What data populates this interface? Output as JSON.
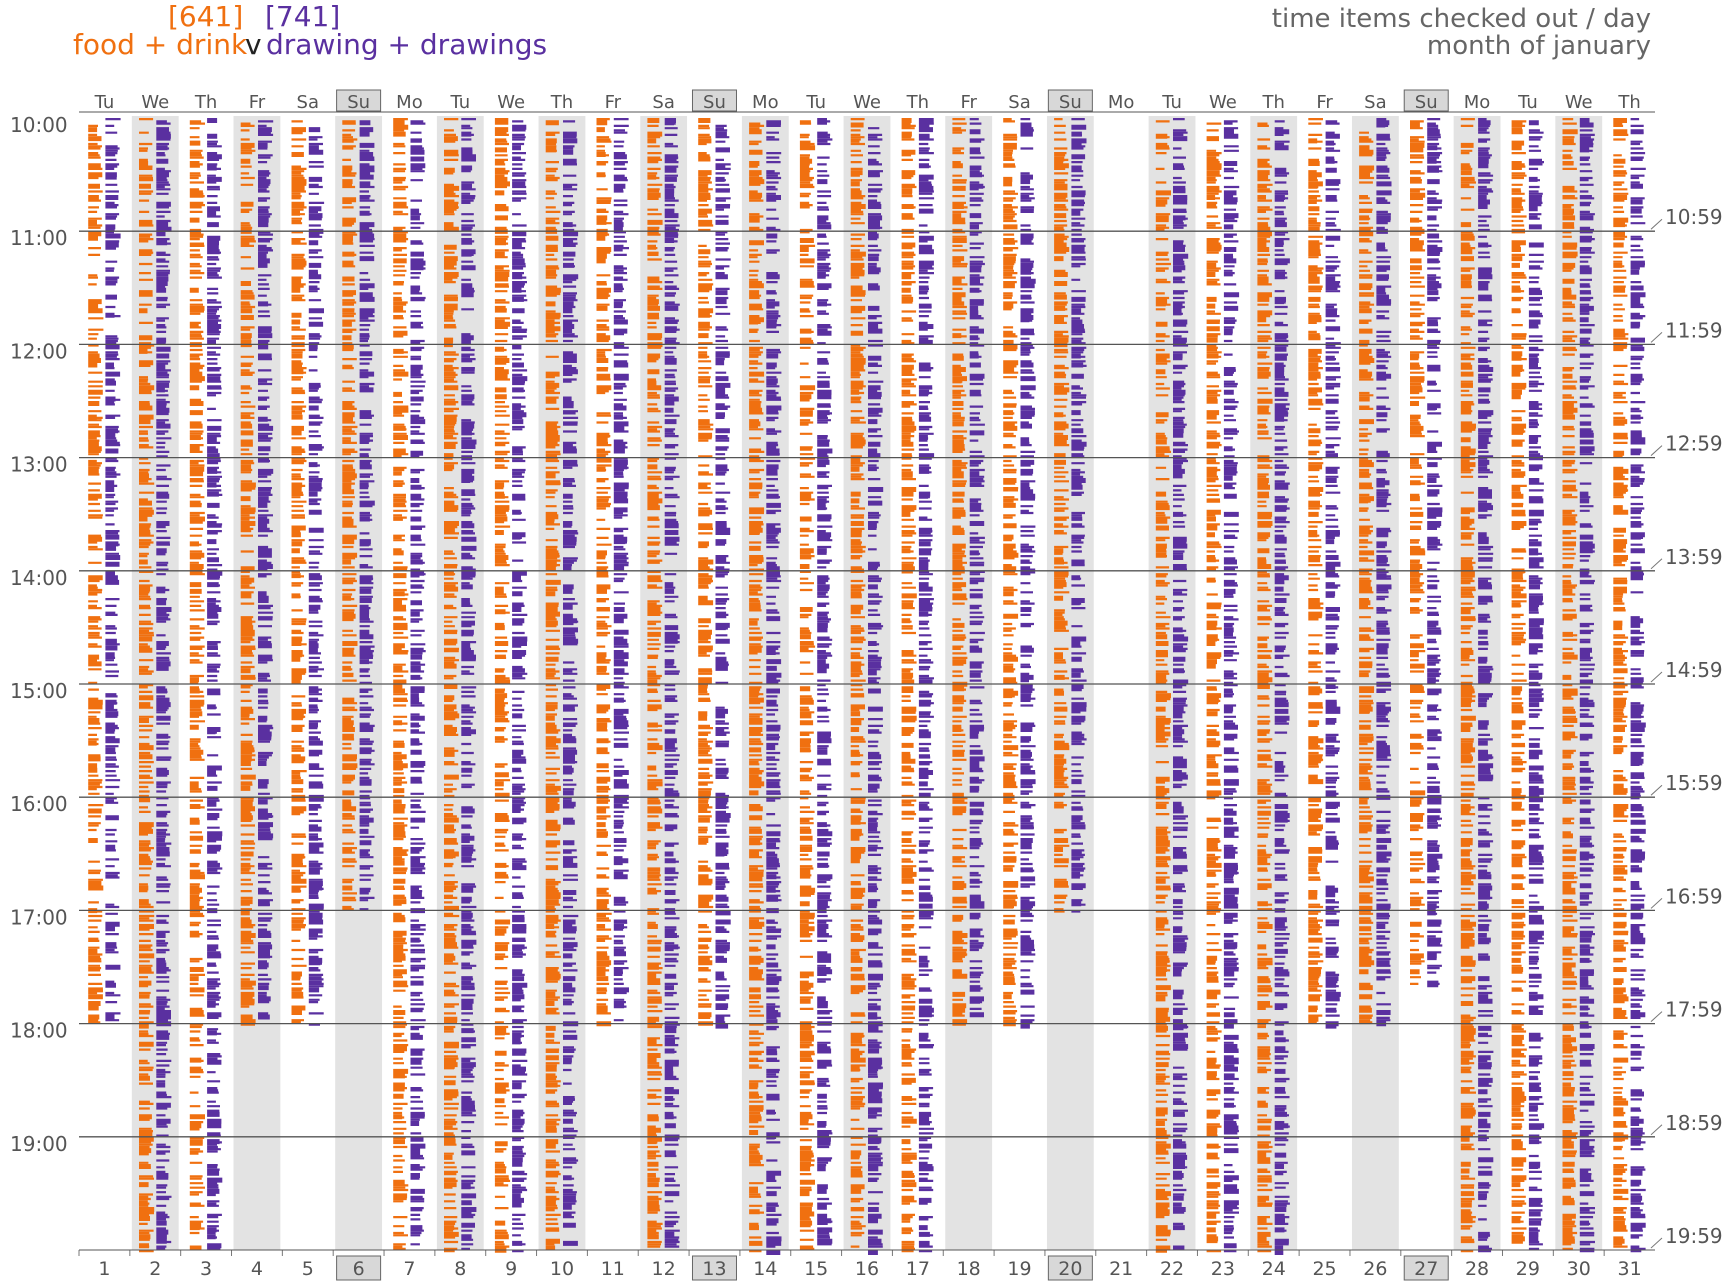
{
  "header": {
    "food_count": "[641]",
    "drawing_count": "[741]",
    "food_label": "food + drink",
    "vs_label": "v",
    "drawing_label": "drawing + drawings",
    "title_line1": "time items checked out / day",
    "title_line2": "month of january"
  },
  "colors": {
    "food": "#f07010",
    "drawing": "#5a30a0",
    "shade": "#e3e3e3",
    "grid": "#555555"
  },
  "chart_data": {
    "type": "heatmap",
    "title": "time items checked out / day",
    "subtitle": "month of january",
    "series": [
      {
        "name": "food + drink",
        "total": 641
      },
      {
        "name": "drawing + drawings",
        "total": 741
      }
    ],
    "days": [
      {
        "num": "1",
        "name": "Tu",
        "shaded": false,
        "boxed": false,
        "close": "18:00"
      },
      {
        "num": "2",
        "name": "We",
        "shaded": true,
        "boxed": false,
        "close": "20:00"
      },
      {
        "num": "3",
        "name": "Th",
        "shaded": false,
        "boxed": false,
        "close": "20:00"
      },
      {
        "num": "4",
        "name": "Fr",
        "shaded": true,
        "boxed": false,
        "close": "18:00"
      },
      {
        "num": "5",
        "name": "Sa",
        "shaded": false,
        "boxed": false,
        "close": "18:00"
      },
      {
        "num": "6",
        "name": "Su",
        "shaded": true,
        "boxed": true,
        "close": "17:00"
      },
      {
        "num": "7",
        "name": "Mo",
        "shaded": false,
        "boxed": false,
        "close": "20:00"
      },
      {
        "num": "8",
        "name": "Tu",
        "shaded": true,
        "boxed": false,
        "close": "20:00"
      },
      {
        "num": "9",
        "name": "We",
        "shaded": false,
        "boxed": false,
        "close": "20:00"
      },
      {
        "num": "10",
        "name": "Th",
        "shaded": true,
        "boxed": false,
        "close": "20:00"
      },
      {
        "num": "11",
        "name": "Fr",
        "shaded": false,
        "boxed": false,
        "close": "18:00"
      },
      {
        "num": "12",
        "name": "Sa",
        "shaded": true,
        "boxed": false,
        "close": "20:00"
      },
      {
        "num": "13",
        "name": "Su",
        "shaded": false,
        "boxed": true,
        "close": "18:00"
      },
      {
        "num": "14",
        "name": "Mo",
        "shaded": true,
        "boxed": false,
        "close": "20:00"
      },
      {
        "num": "15",
        "name": "Tu",
        "shaded": false,
        "boxed": false,
        "close": "20:00"
      },
      {
        "num": "16",
        "name": "We",
        "shaded": true,
        "boxed": false,
        "close": "20:00"
      },
      {
        "num": "17",
        "name": "Th",
        "shaded": false,
        "boxed": false,
        "close": "20:00"
      },
      {
        "num": "18",
        "name": "Fr",
        "shaded": true,
        "boxed": false,
        "close": "18:00"
      },
      {
        "num": "19",
        "name": "Sa",
        "shaded": false,
        "boxed": false,
        "close": "18:00"
      },
      {
        "num": "20",
        "name": "Su",
        "shaded": true,
        "boxed": true,
        "close": "17:00"
      },
      {
        "num": "21",
        "name": "Mo",
        "shaded": false,
        "boxed": false,
        "close": "10:00"
      },
      {
        "num": "22",
        "name": "Tu",
        "shaded": true,
        "boxed": false,
        "close": "20:00"
      },
      {
        "num": "23",
        "name": "We",
        "shaded": false,
        "boxed": false,
        "close": "20:00"
      },
      {
        "num": "24",
        "name": "Th",
        "shaded": true,
        "boxed": false,
        "close": "20:00"
      },
      {
        "num": "25",
        "name": "Fr",
        "shaded": false,
        "boxed": false,
        "close": "18:00"
      },
      {
        "num": "26",
        "name": "Sa",
        "shaded": true,
        "boxed": false,
        "close": "18:00"
      },
      {
        "num": "27",
        "name": "Su",
        "shaded": false,
        "boxed": true,
        "close": "17:40"
      },
      {
        "num": "28",
        "name": "Mo",
        "shaded": true,
        "boxed": false,
        "close": "20:00"
      },
      {
        "num": "29",
        "name": "Tu",
        "shaded": false,
        "boxed": false,
        "close": "20:00"
      },
      {
        "num": "30",
        "name": "We",
        "shaded": true,
        "boxed": false,
        "close": "20:00"
      },
      {
        "num": "31",
        "name": "Th",
        "shaded": false,
        "boxed": false,
        "close": "20:00"
      }
    ],
    "y_axis_left": [
      "10:00",
      "11:00",
      "12:00",
      "13:00",
      "14:00",
      "15:00",
      "16:00",
      "17:00",
      "18:00",
      "19:00"
    ],
    "y_axis_right": [
      "10:59",
      "11:59",
      "12:59",
      "13:59",
      "14:59",
      "15:59",
      "16:59",
      "17:59",
      "18:59",
      "19:59"
    ],
    "ylim": [
      "10:00",
      "20:00"
    ],
    "grid": true
  }
}
